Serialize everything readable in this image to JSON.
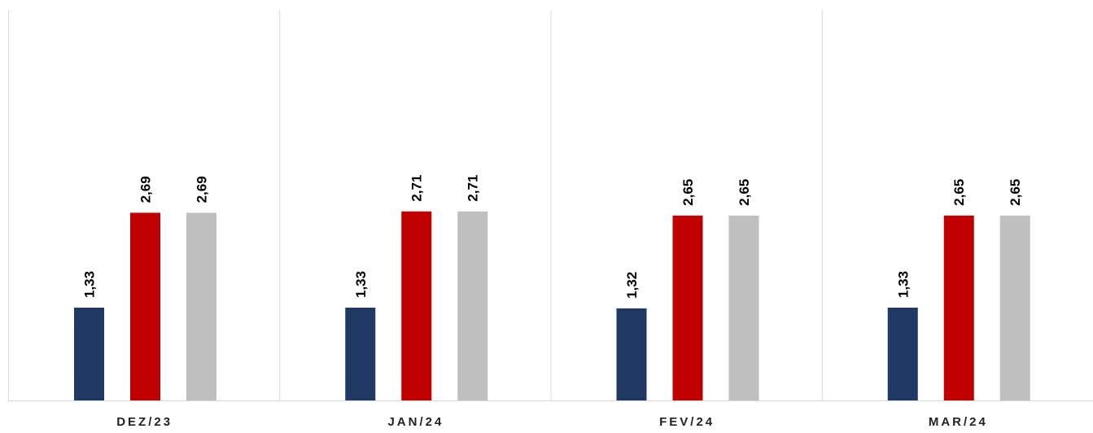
{
  "chart_data": {
    "type": "bar",
    "categories": [
      "DEZ/23",
      "JAN/24",
      "FEV/24",
      "MAR/24"
    ],
    "series": [
      {
        "values": [
          1.33,
          1.33,
          1.32,
          1.33
        ],
        "labels": [
          "1,33",
          "1,33",
          "1,32",
          "1,33"
        ],
        "color": "#203864"
      },
      {
        "values": [
          2.69,
          2.71,
          2.65,
          2.65
        ],
        "labels": [
          "2,69",
          "2,71",
          "2,65",
          "2,65"
        ],
        "color": "#C00000"
      },
      {
        "values": [
          2.69,
          2.71,
          2.65,
          2.65
        ],
        "labels": [
          "2,69",
          "2,71",
          "2,65",
          "2,65"
        ],
        "color": "#BFBFBF"
      }
    ],
    "ylim": [
      0,
      5.6
    ],
    "grid": false,
    "legend": "none",
    "title": "",
    "xlabel": "",
    "ylabel": ""
  },
  "colors": {
    "separator": "#D9D9D9",
    "axis": "#D9D9D9"
  }
}
